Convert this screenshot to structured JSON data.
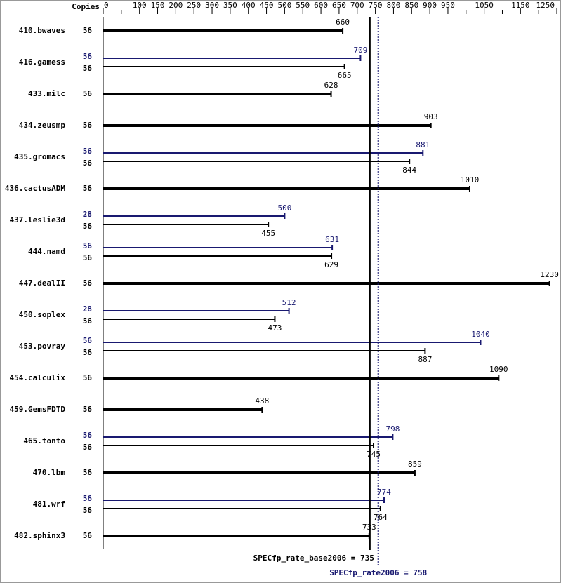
{
  "chart_data": {
    "type": "bar",
    "orientation": "horizontal",
    "copies_label": "Copies",
    "categories": [
      "410.bwaves",
      "416.gamess",
      "433.milc",
      "434.zeusmp",
      "435.gromacs",
      "436.cactusADM",
      "437.leslie3d",
      "444.namd",
      "447.dealII",
      "450.soplex",
      "453.povray",
      "454.calculix",
      "459.GemsFDTD",
      "465.tonto",
      "470.lbm",
      "481.wrf",
      "482.sphinx3"
    ],
    "series": [
      {
        "color": "#000000",
        "values": [
          660,
          665,
          628,
          903,
          844,
          1010,
          455,
          629,
          1230,
          473,
          887,
          1090,
          438,
          745,
          859,
          764,
          733
        ],
        "copies": [
          56,
          56,
          56,
          56,
          56,
          56,
          56,
          56,
          56,
          56,
          56,
          56,
          56,
          56,
          56,
          56,
          56
        ]
      },
      {
        "color": "#191970",
        "values": [
          null,
          709,
          null,
          null,
          881,
          null,
          500,
          631,
          null,
          512,
          1040,
          null,
          null,
          798,
          null,
          774,
          null
        ],
        "copies": [
          null,
          56,
          null,
          null,
          56,
          null,
          28,
          56,
          null,
          28,
          56,
          null,
          null,
          56,
          null,
          56,
          null
        ]
      }
    ],
    "xlim": [
      0,
      1250
    ],
    "xticks": [
      0,
      100,
      150,
      200,
      250,
      300,
      350,
      400,
      450,
      500,
      550,
      600,
      650,
      700,
      750,
      800,
      850,
      900,
      950,
      1050,
      1150,
      1250
    ],
    "minor_xticks": [
      50,
      1000,
      1100,
      1200
    ],
    "reference_lines": [
      {
        "label": "SPECfp_rate_base2006 = 735",
        "value": 735,
        "color": "#000000",
        "style": "solid"
      },
      {
        "label": "SPECfp_rate2006 = 758",
        "value": 758,
        "color": "#191970",
        "style": "dotted"
      }
    ]
  }
}
